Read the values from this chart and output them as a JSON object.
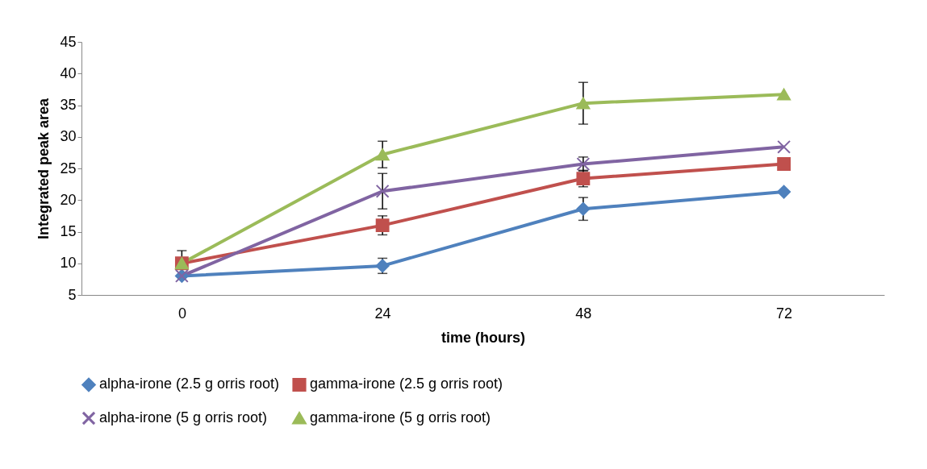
{
  "chart_data": {
    "type": "line",
    "xlabel": "time (hours)",
    "ylabel": "Integrated peak area",
    "categories": [
      "0",
      "24",
      "48",
      "72"
    ],
    "ylim": [
      5,
      45
    ],
    "yticks": [
      5,
      10,
      15,
      20,
      25,
      30,
      35,
      40,
      45
    ],
    "grid": false,
    "legend": "bottom",
    "series": [
      {
        "name": "alpha-irone (2.5 g orris root)",
        "color": "#4f81bd",
        "marker": "diamond",
        "values": [
          8.0,
          9.6,
          18.6,
          21.3
        ],
        "errors": [
          null,
          1.2,
          1.8,
          null
        ]
      },
      {
        "name": "gamma-irone (2.5 g orris root)",
        "color": "#c0504d",
        "marker": "square",
        "values": [
          10.0,
          16.0,
          23.4,
          25.7
        ],
        "errors": [
          2.0,
          1.5,
          1.3,
          null
        ]
      },
      {
        "name": "alpha-irone (5 g orris root)",
        "color": "#8064a2",
        "marker": "cross",
        "values": [
          8.0,
          21.4,
          25.7,
          28.4
        ],
        "errors": [
          null,
          2.8,
          1.1,
          null
        ]
      },
      {
        "name": "gamma-irone (5 g orris root)",
        "color": "#9bbb59",
        "marker": "triangle",
        "values": [
          10.0,
          27.2,
          35.3,
          36.7
        ],
        "errors": [
          null,
          2.1,
          3.3,
          null
        ]
      }
    ]
  }
}
